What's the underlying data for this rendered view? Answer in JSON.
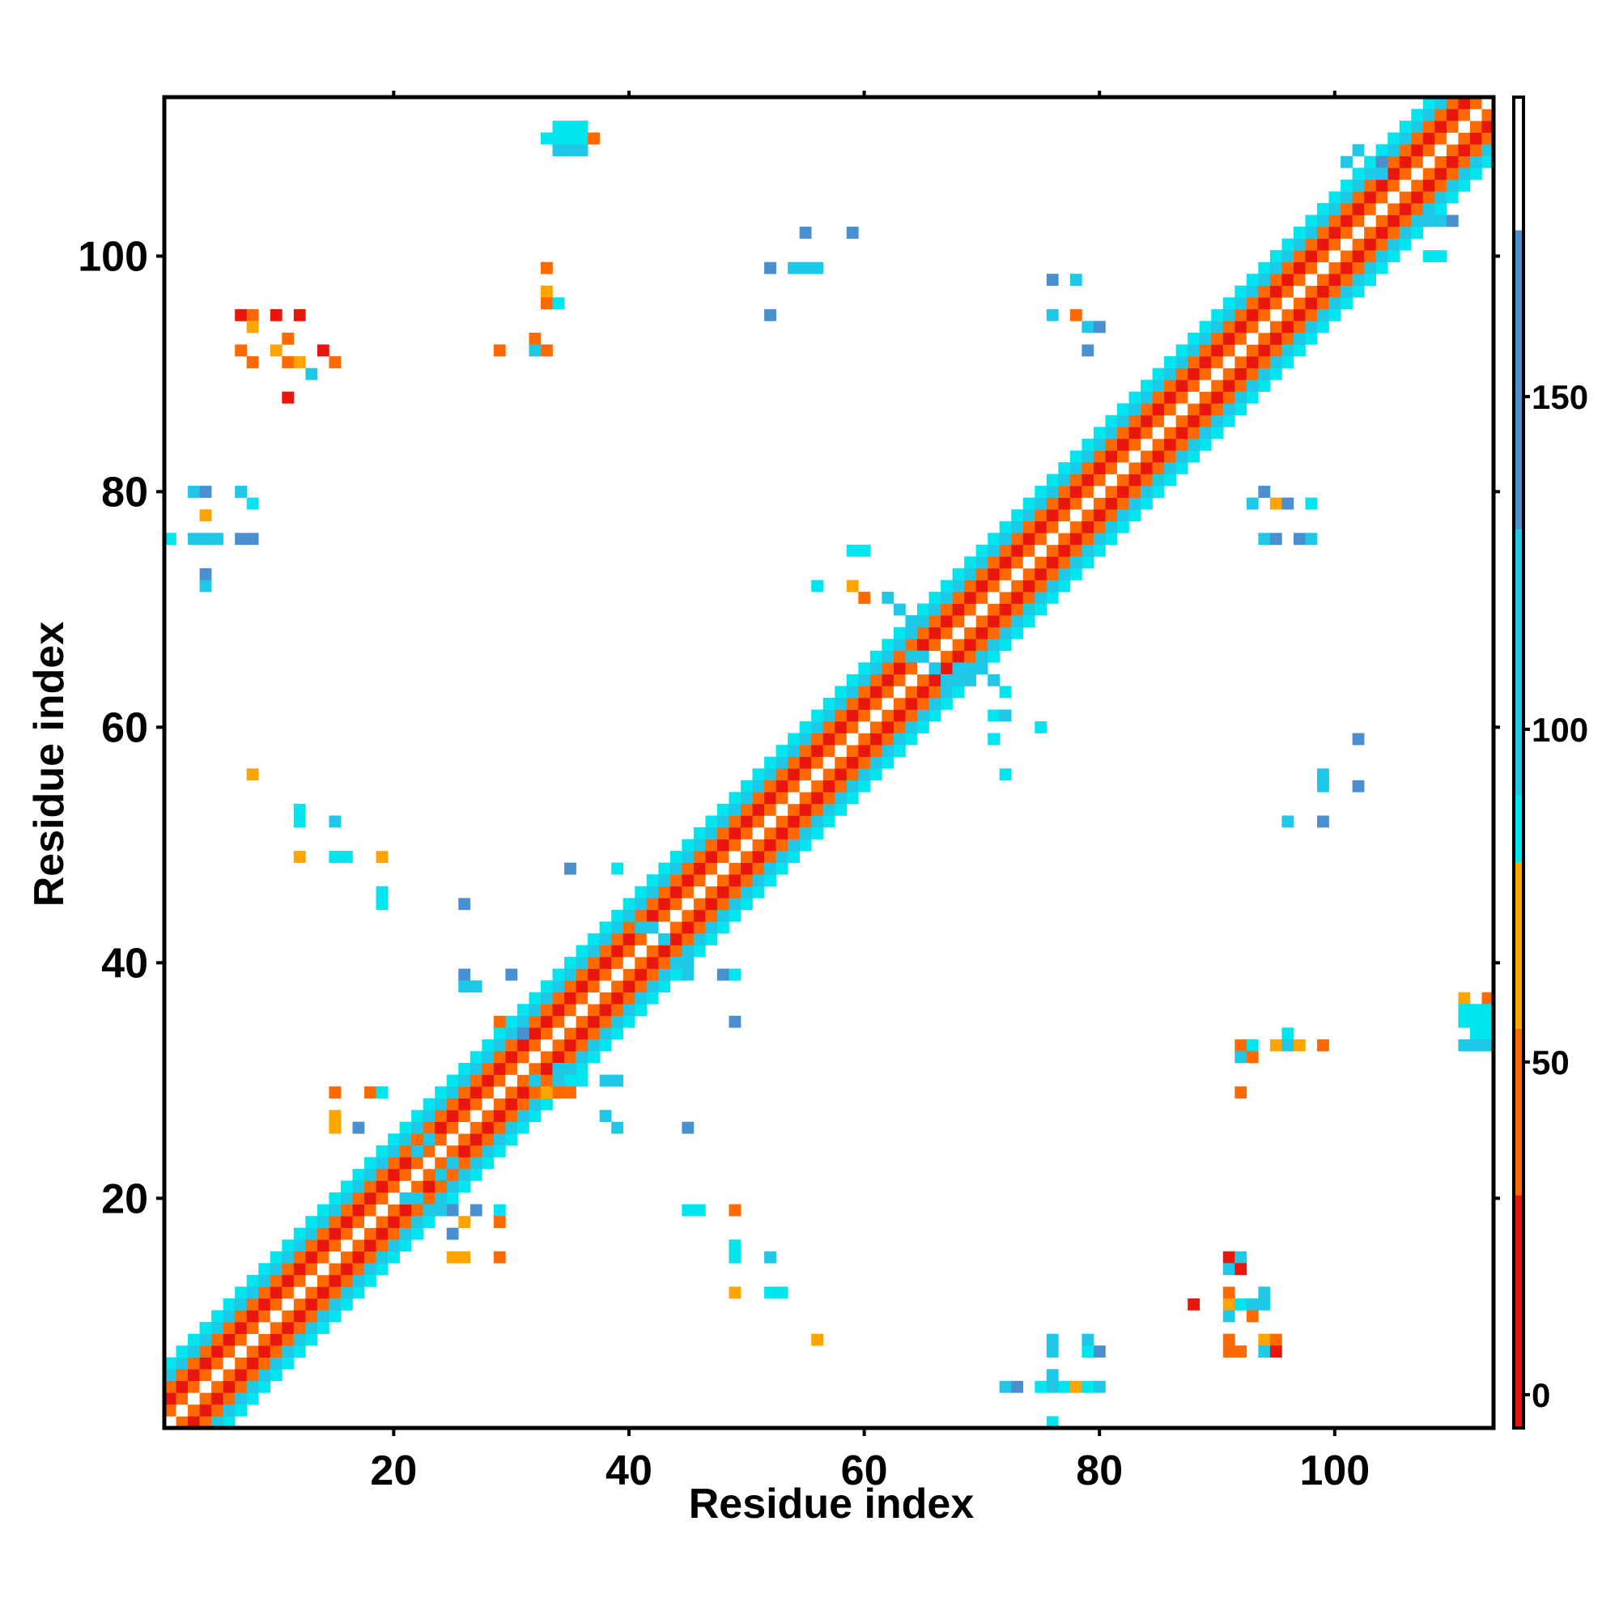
{
  "chart_data": {
    "type": "heatmap",
    "xlabel": "Residue index",
    "ylabel": "Residue index",
    "xlim": [
      1,
      113
    ],
    "ylim": [
      1,
      113
    ],
    "x_ticks": [
      20,
      40,
      60,
      80,
      100
    ],
    "y_ticks": [
      20,
      40,
      60,
      80,
      100
    ],
    "colorbar": {
      "ticks": [
        0,
        50,
        100,
        150
      ],
      "range": [
        -5,
        195
      ],
      "bands": [
        {
          "from": -5,
          "to": 30,
          "color": "#e8160c"
        },
        {
          "from": 30,
          "to": 55,
          "color": "#ff6a00"
        },
        {
          "from": 55,
          "to": 80,
          "color": "#ffa500"
        },
        {
          "from": 80,
          "to": 90,
          "color": "#00e5ee"
        },
        {
          "from": 90,
          "to": 130,
          "color": "#1ec8e6"
        },
        {
          "from": 130,
          "to": 175,
          "color": "#4a8fd0"
        },
        {
          "from": 175,
          "to": 195,
          "color": "#ffffff"
        }
      ]
    },
    "diagonal_bands": [
      {
        "offset": 0,
        "color": "#ffffff"
      },
      {
        "offset": 1,
        "color": "#ff6a00"
      },
      {
        "offset": 2,
        "color": "#e8160c"
      },
      {
        "offset": 3,
        "color": "#ff6a00"
      },
      {
        "offset": 4,
        "color": "#1ec8e6"
      },
      {
        "offset": 5,
        "color": "#00e5ee"
      }
    ],
    "cells": [
      {
        "x": 34,
        "y": 111,
        "v": 85
      },
      {
        "x": 35,
        "y": 111,
        "v": 85
      },
      {
        "x": 36,
        "y": 111,
        "v": 85
      },
      {
        "x": 33,
        "y": 110,
        "v": 85
      },
      {
        "x": 34,
        "y": 110,
        "v": 85
      },
      {
        "x": 35,
        "y": 110,
        "v": 85
      },
      {
        "x": 36,
        "y": 110,
        "v": 85
      },
      {
        "x": 34,
        "y": 109,
        "v": 95
      },
      {
        "x": 35,
        "y": 109,
        "v": 95
      },
      {
        "x": 36,
        "y": 109,
        "v": 95
      },
      {
        "x": 37,
        "y": 110,
        "v": 40
      },
      {
        "x": 7,
        "y": 95,
        "v": 10
      },
      {
        "x": 8,
        "y": 95,
        "v": 40
      },
      {
        "x": 8,
        "y": 94,
        "v": 60
      },
      {
        "x": 10,
        "y": 95,
        "v": 10
      },
      {
        "x": 12,
        "y": 95,
        "v": 10
      },
      {
        "x": 11,
        "y": 93,
        "v": 40
      },
      {
        "x": 7,
        "y": 92,
        "v": 40
      },
      {
        "x": 8,
        "y": 91,
        "v": 40
      },
      {
        "x": 10,
        "y": 92,
        "v": 60
      },
      {
        "x": 11,
        "y": 91,
        "v": 40
      },
      {
        "x": 12,
        "y": 91,
        "v": 60
      },
      {
        "x": 14,
        "y": 92,
        "v": 10
      },
      {
        "x": 15,
        "y": 91,
        "v": 40
      },
      {
        "x": 13,
        "y": 90,
        "v": 100
      },
      {
        "x": 11,
        "y": 88,
        "v": 10
      },
      {
        "x": 33,
        "y": 99,
        "v": 40
      },
      {
        "x": 33,
        "y": 97,
        "v": 60
      },
      {
        "x": 33,
        "y": 96,
        "v": 40
      },
      {
        "x": 34,
        "y": 96,
        "v": 85
      },
      {
        "x": 32,
        "y": 93,
        "v": 40
      },
      {
        "x": 33,
        "y": 92,
        "v": 40
      },
      {
        "x": 32,
        "y": 92,
        "v": 100
      },
      {
        "x": 29,
        "y": 92,
        "v": 40
      },
      {
        "x": 55,
        "y": 102,
        "v": 150
      },
      {
        "x": 59,
        "y": 102,
        "v": 150
      },
      {
        "x": 52,
        "y": 99,
        "v": 150
      },
      {
        "x": 54,
        "y": 99,
        "v": 100
      },
      {
        "x": 55,
        "y": 99,
        "v": 100
      },
      {
        "x": 56,
        "y": 99,
        "v": 100
      },
      {
        "x": 52,
        "y": 95,
        "v": 150
      },
      {
        "x": 76,
        "y": 98,
        "v": 150
      },
      {
        "x": 78,
        "y": 98,
        "v": 100
      },
      {
        "x": 76,
        "y": 95,
        "v": 100
      },
      {
        "x": 78,
        "y": 95,
        "v": 40
      },
      {
        "x": 79,
        "y": 94,
        "v": 100
      },
      {
        "x": 80,
        "y": 94,
        "v": 150
      },
      {
        "x": 79,
        "y": 92,
        "v": 150
      },
      {
        "x": 3,
        "y": 80,
        "v": 100
      },
      {
        "x": 4,
        "y": 80,
        "v": 150
      },
      {
        "x": 7,
        "y": 80,
        "v": 100
      },
      {
        "x": 4,
        "y": 78,
        "v": 60
      },
      {
        "x": 8,
        "y": 79,
        "v": 85
      },
      {
        "x": 1,
        "y": 76,
        "v": 85
      },
      {
        "x": 3,
        "y": 76,
        "v": 100
      },
      {
        "x": 4,
        "y": 76,
        "v": 100
      },
      {
        "x": 5,
        "y": 76,
        "v": 100
      },
      {
        "x": 7,
        "y": 76,
        "v": 150
      },
      {
        "x": 8,
        "y": 76,
        "v": 150
      },
      {
        "x": 4,
        "y": 73,
        "v": 150
      },
      {
        "x": 4,
        "y": 72,
        "v": 100
      },
      {
        "x": 93,
        "y": 79,
        "v": 100
      },
      {
        "x": 94,
        "y": 80,
        "v": 150
      },
      {
        "x": 95,
        "y": 79,
        "v": 60
      },
      {
        "x": 96,
        "y": 79,
        "v": 150
      },
      {
        "x": 98,
        "y": 79,
        "v": 85
      },
      {
        "x": 94,
        "y": 76,
        "v": 100
      },
      {
        "x": 95,
        "y": 76,
        "v": 150
      },
      {
        "x": 97,
        "y": 76,
        "v": 150
      },
      {
        "x": 98,
        "y": 76,
        "v": 100
      },
      {
        "x": 59,
        "y": 75,
        "v": 85
      },
      {
        "x": 60,
        "y": 75,
        "v": 85
      },
      {
        "x": 56,
        "y": 72,
        "v": 85
      },
      {
        "x": 59,
        "y": 72,
        "v": 60
      },
      {
        "x": 60,
        "y": 71,
        "v": 40
      },
      {
        "x": 62,
        "y": 71,
        "v": 100
      },
      {
        "x": 63,
        "y": 70,
        "v": 100
      },
      {
        "x": 64,
        "y": 69,
        "v": 100
      },
      {
        "x": 70,
        "y": 65,
        "v": 100
      },
      {
        "x": 71,
        "y": 64,
        "v": 100
      },
      {
        "x": 72,
        "y": 63,
        "v": 85
      },
      {
        "x": 71,
        "y": 61,
        "v": 85
      },
      {
        "x": 72,
        "y": 61,
        "v": 100
      },
      {
        "x": 71,
        "y": 59,
        "v": 85
      },
      {
        "x": 75,
        "y": 60,
        "v": 85
      },
      {
        "x": 72,
        "y": 56,
        "v": 85
      },
      {
        "x": 8,
        "y": 56,
        "v": 60
      },
      {
        "x": 12,
        "y": 53,
        "v": 85
      },
      {
        "x": 12,
        "y": 52,
        "v": 85
      },
      {
        "x": 15,
        "y": 52,
        "v": 100
      },
      {
        "x": 12,
        "y": 49,
        "v": 60
      },
      {
        "x": 15,
        "y": 49,
        "v": 85
      },
      {
        "x": 16,
        "y": 49,
        "v": 85
      },
      {
        "x": 19,
        "y": 49,
        "v": 60
      },
      {
        "x": 19,
        "y": 46,
        "v": 85
      },
      {
        "x": 19,
        "y": 45,
        "v": 85
      },
      {
        "x": 26,
        "y": 45,
        "v": 150
      },
      {
        "x": 35,
        "y": 48,
        "v": 150
      },
      {
        "x": 39,
        "y": 48,
        "v": 85
      },
      {
        "x": 102,
        "y": 59,
        "v": 150
      },
      {
        "x": 99,
        "y": 56,
        "v": 100
      },
      {
        "x": 99,
        "y": 55,
        "v": 100
      },
      {
        "x": 102,
        "y": 55,
        "v": 150
      },
      {
        "x": 96,
        "y": 52,
        "v": 100
      },
      {
        "x": 99,
        "y": 52,
        "v": 150
      },
      {
        "x": 26,
        "y": 39,
        "v": 150
      },
      {
        "x": 27,
        "y": 38,
        "v": 100
      },
      {
        "x": 26,
        "y": 38,
        "v": 100
      },
      {
        "x": 30,
        "y": 39,
        "v": 150
      },
      {
        "x": 29,
        "y": 35,
        "v": 40
      },
      {
        "x": 31,
        "y": 34,
        "v": 150
      },
      {
        "x": 48,
        "y": 39,
        "v": 150
      },
      {
        "x": 49,
        "y": 39,
        "v": 85
      },
      {
        "x": 49,
        "y": 35,
        "v": 150
      },
      {
        "x": 111,
        "y": 37,
        "v": 60
      },
      {
        "x": 113,
        "y": 37,
        "v": 40
      },
      {
        "x": 111,
        "y": 36,
        "v": 85
      },
      {
        "x": 112,
        "y": 36,
        "v": 85
      },
      {
        "x": 113,
        "y": 36,
        "v": 85
      },
      {
        "x": 111,
        "y": 35,
        "v": 85
      },
      {
        "x": 112,
        "y": 35,
        "v": 85
      },
      {
        "x": 113,
        "y": 35,
        "v": 85
      },
      {
        "x": 112,
        "y": 34,
        "v": 85
      },
      {
        "x": 113,
        "y": 34,
        "v": 85
      },
      {
        "x": 111,
        "y": 33,
        "v": 100
      },
      {
        "x": 112,
        "y": 33,
        "v": 100
      },
      {
        "x": 113,
        "y": 33,
        "v": 100
      },
      {
        "x": 92,
        "y": 33,
        "v": 40
      },
      {
        "x": 93,
        "y": 33,
        "v": 85
      },
      {
        "x": 92,
        "y": 32,
        "v": 100
      },
      {
        "x": 93,
        "y": 32,
        "v": 40
      },
      {
        "x": 95,
        "y": 33,
        "v": 60
      },
      {
        "x": 96,
        "y": 34,
        "v": 85
      },
      {
        "x": 96,
        "y": 33,
        "v": 100
      },
      {
        "x": 97,
        "y": 33,
        "v": 60
      },
      {
        "x": 99,
        "y": 33,
        "v": 40
      },
      {
        "x": 92,
        "y": 29,
        "v": 40
      },
      {
        "x": 15,
        "y": 29,
        "v": 40
      },
      {
        "x": 18,
        "y": 29,
        "v": 40
      },
      {
        "x": 19,
        "y": 29,
        "v": 85
      },
      {
        "x": 15,
        "y": 27,
        "v": 60
      },
      {
        "x": 15,
        "y": 26,
        "v": 60
      },
      {
        "x": 17,
        "y": 26,
        "v": 150
      },
      {
        "x": 38,
        "y": 27,
        "v": 100
      },
      {
        "x": 39,
        "y": 26,
        "v": 100
      },
      {
        "x": 45,
        "y": 26,
        "v": 150
      },
      {
        "x": 38,
        "y": 30,
        "v": 100
      },
      {
        "x": 39,
        "y": 30,
        "v": 100
      },
      {
        "x": 25,
        "y": 19,
        "v": 150
      },
      {
        "x": 26,
        "y": 18,
        "v": 60
      },
      {
        "x": 27,
        "y": 19,
        "v": 150
      },
      {
        "x": 29,
        "y": 19,
        "v": 85
      },
      {
        "x": 29,
        "y": 18,
        "v": 40
      },
      {
        "x": 25,
        "y": 17,
        "v": 150
      },
      {
        "x": 25,
        "y": 15,
        "v": 60
      },
      {
        "x": 26,
        "y": 15,
        "v": 60
      },
      {
        "x": 29,
        "y": 15,
        "v": 40
      },
      {
        "x": 45,
        "y": 19,
        "v": 85
      },
      {
        "x": 46,
        "y": 19,
        "v": 85
      },
      {
        "x": 49,
        "y": 19,
        "v": 40
      },
      {
        "x": 49,
        "y": 16,
        "v": 85
      },
      {
        "x": 49,
        "y": 15,
        "v": 85
      },
      {
        "x": 52,
        "y": 15,
        "v": 100
      },
      {
        "x": 49,
        "y": 12,
        "v": 60
      },
      {
        "x": 52,
        "y": 12,
        "v": 85
      },
      {
        "x": 53,
        "y": 12,
        "v": 85
      },
      {
        "x": 56,
        "y": 8,
        "v": 60
      },
      {
        "x": 91,
        "y": 15,
        "v": 10
      },
      {
        "x": 92,
        "y": 15,
        "v": 100
      },
      {
        "x": 91,
        "y": 14,
        "v": 100
      },
      {
        "x": 92,
        "y": 14,
        "v": 10
      },
      {
        "x": 88,
        "y": 11,
        "v": 10
      },
      {
        "x": 91,
        "y": 12,
        "v": 40
      },
      {
        "x": 91,
        "y": 11,
        "v": 60
      },
      {
        "x": 92,
        "y": 11,
        "v": 85
      },
      {
        "x": 93,
        "y": 11,
        "v": 100
      },
      {
        "x": 94,
        "y": 11,
        "v": 100
      },
      {
        "x": 91,
        "y": 10,
        "v": 100
      },
      {
        "x": 93,
        "y": 10,
        "v": 40
      },
      {
        "x": 94,
        "y": 12,
        "v": 100
      },
      {
        "x": 91,
        "y": 8,
        "v": 40
      },
      {
        "x": 92,
        "y": 7,
        "v": 40
      },
      {
        "x": 91,
        "y": 7,
        "v": 40
      },
      {
        "x": 94,
        "y": 8,
        "v": 60
      },
      {
        "x": 95,
        "y": 8,
        "v": 40
      },
      {
        "x": 94,
        "y": 7,
        "v": 100
      },
      {
        "x": 95,
        "y": 7,
        "v": 10
      },
      {
        "x": 76,
        "y": 8,
        "v": 100
      },
      {
        "x": 76,
        "y": 7,
        "v": 100
      },
      {
        "x": 79,
        "y": 8,
        "v": 100
      },
      {
        "x": 80,
        "y": 7,
        "v": 150
      },
      {
        "x": 79,
        "y": 7,
        "v": 85
      },
      {
        "x": 72,
        "y": 4,
        "v": 100
      },
      {
        "x": 73,
        "y": 4,
        "v": 150
      },
      {
        "x": 75,
        "y": 4,
        "v": 85
      },
      {
        "x": 76,
        "y": 4,
        "v": 100
      },
      {
        "x": 77,
        "y": 4,
        "v": 85
      },
      {
        "x": 78,
        "y": 4,
        "v": 60
      },
      {
        "x": 79,
        "y": 4,
        "v": 85
      },
      {
        "x": 80,
        "y": 4,
        "v": 100
      },
      {
        "x": 76,
        "y": 5,
        "v": 100
      },
      {
        "x": 76,
        "y": 1,
        "v": 85
      },
      {
        "x": 101,
        "y": 108,
        "v": 100
      },
      {
        "x": 102,
        "y": 109,
        "v": 100
      },
      {
        "x": 104,
        "y": 108,
        "v": 150
      },
      {
        "x": 104,
        "y": 107,
        "v": 100
      },
      {
        "x": 108,
        "y": 103,
        "v": 100
      },
      {
        "x": 109,
        "y": 103,
        "v": 100
      },
      {
        "x": 110,
        "y": 103,
        "v": 150
      },
      {
        "x": 108,
        "y": 100,
        "v": 85
      },
      {
        "x": 109,
        "y": 100,
        "v": 85
      },
      {
        "x": 63,
        "y": 67,
        "v": 100
      },
      {
        "x": 64,
        "y": 66,
        "v": 100
      },
      {
        "x": 65,
        "y": 66,
        "v": 100
      },
      {
        "x": 66,
        "y": 65,
        "v": 100
      },
      {
        "x": 67,
        "y": 64,
        "v": 100
      },
      {
        "x": 68,
        "y": 65,
        "v": 100
      },
      {
        "x": 69,
        "y": 64,
        "v": 100
      },
      {
        "x": 22,
        "y": 24,
        "v": 100
      },
      {
        "x": 23,
        "y": 25,
        "v": 100
      },
      {
        "x": 24,
        "y": 22,
        "v": 100
      },
      {
        "x": 25,
        "y": 23,
        "v": 100
      },
      {
        "x": 21,
        "y": 20,
        "v": 100
      },
      {
        "x": 22,
        "y": 20,
        "v": 100
      },
      {
        "x": 23,
        "y": 19,
        "v": 100
      },
      {
        "x": 24,
        "y": 19,
        "v": 100
      },
      {
        "x": 32,
        "y": 30,
        "v": 100
      },
      {
        "x": 33,
        "y": 29,
        "v": 60
      },
      {
        "x": 34,
        "y": 29,
        "v": 40
      },
      {
        "x": 35,
        "y": 29,
        "v": 40
      },
      {
        "x": 36,
        "y": 30,
        "v": 85
      },
      {
        "x": 34,
        "y": 31,
        "v": 100
      },
      {
        "x": 35,
        "y": 31,
        "v": 100
      },
      {
        "x": 40,
        "y": 44,
        "v": 100
      },
      {
        "x": 41,
        "y": 43,
        "v": 100
      },
      {
        "x": 42,
        "y": 43,
        "v": 100
      },
      {
        "x": 43,
        "y": 42,
        "v": 100
      },
      {
        "x": 44,
        "y": 40,
        "v": 100
      },
      {
        "x": 45,
        "y": 40,
        "v": 100
      },
      {
        "x": 45,
        "y": 39,
        "v": 100
      }
    ]
  }
}
